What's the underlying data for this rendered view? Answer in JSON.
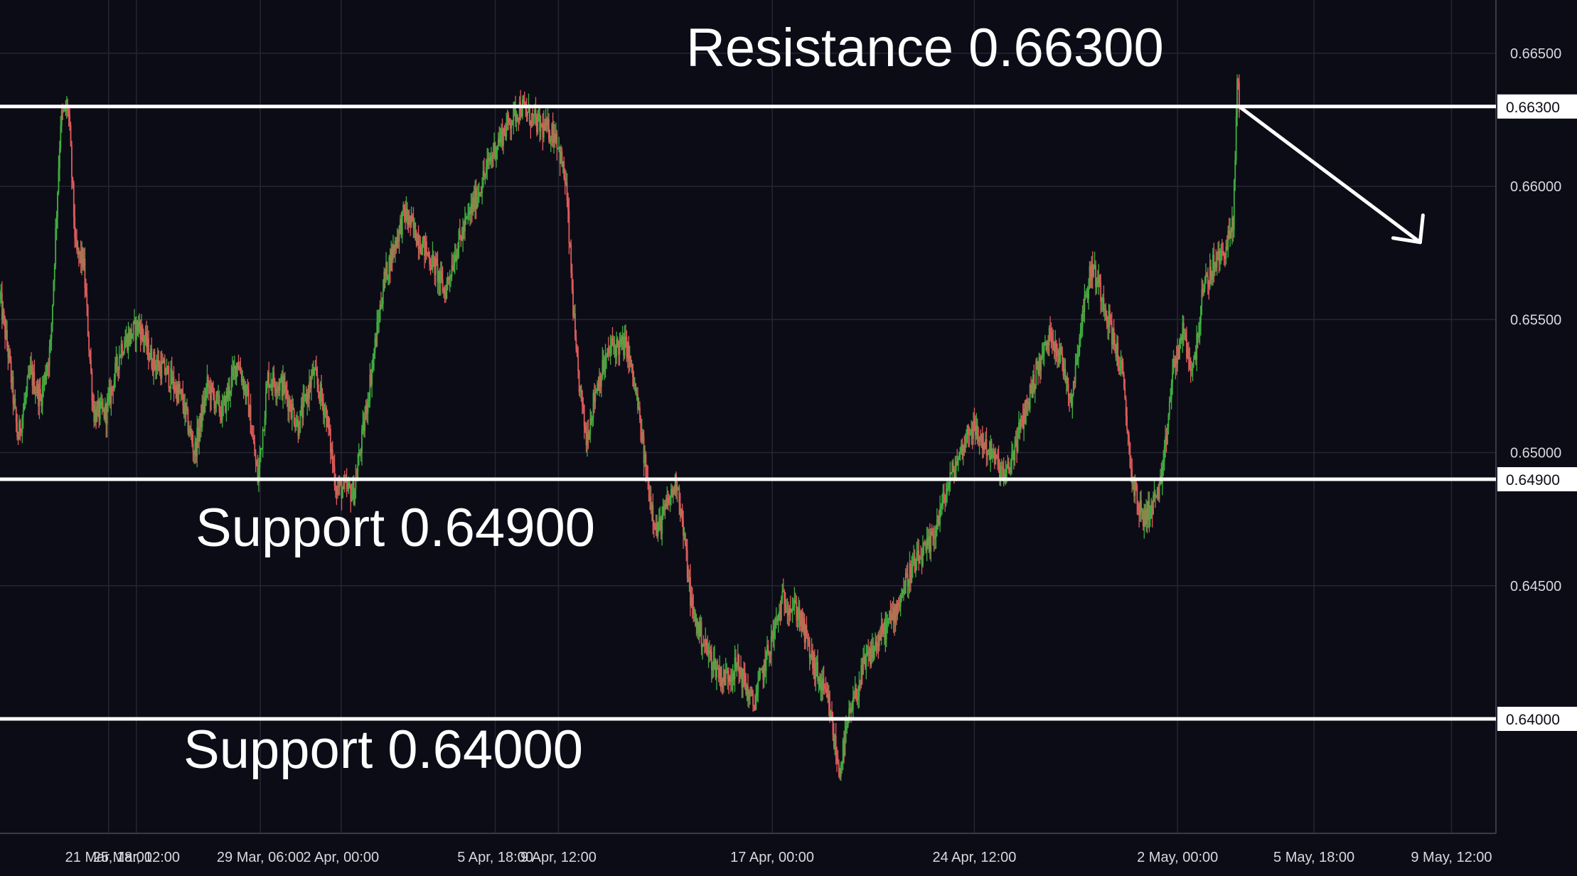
{
  "chart_data": {
    "type": "candlestick",
    "instrument_hint": "",
    "x_tick_labels": [
      "21 Mar, 18:00",
      "25 Mar, 12:00",
      "29 Mar, 06:00",
      "2 Apr, 00:00",
      "5 Apr, 18:00",
      "9 Apr, 12:00",
      "17 Apr, 00:00",
      "24 Apr, 12:00",
      "2 May, 00:00",
      "5 May, 18:00",
      "9 May, 12:00"
    ],
    "y_tick_labels": [
      "0.66500",
      "0.66000",
      "0.65500",
      "0.65000",
      "0.64500"
    ],
    "ylim": [
      0.6357,
      0.667
    ],
    "grid": true,
    "colors": {
      "background": "#0c0c17",
      "grid": "#262633",
      "up": "#3fae3f",
      "down": "#e05b5b",
      "level_line": "#ffffff"
    },
    "price_path_keypoints": [
      [
        0,
        0.6558
      ],
      [
        18,
        0.6535
      ],
      [
        35,
        0.6505
      ],
      [
        60,
        0.653
      ],
      [
        80,
        0.652
      ],
      [
        100,
        0.654
      ],
      [
        120,
        0.6625
      ],
      [
        135,
        0.663
      ],
      [
        150,
        0.6575
      ],
      [
        165,
        0.6572
      ],
      [
        185,
        0.6515
      ],
      [
        210,
        0.6515
      ],
      [
        240,
        0.654
      ],
      [
        275,
        0.6548
      ],
      [
        300,
        0.6535
      ],
      [
        330,
        0.653
      ],
      [
        360,
        0.652
      ],
      [
        385,
        0.65
      ],
      [
        410,
        0.6525
      ],
      [
        440,
        0.6515
      ],
      [
        470,
        0.6535
      ],
      [
        490,
        0.652
      ],
      [
        510,
        0.649
      ],
      [
        530,
        0.6528
      ],
      [
        560,
        0.6525
      ],
      [
        590,
        0.651
      ],
      [
        620,
        0.653
      ],
      [
        645,
        0.6515
      ],
      [
        665,
        0.6487
      ],
      [
        700,
        0.6485
      ],
      [
        720,
        0.651
      ],
      [
        760,
        0.6565
      ],
      [
        800,
        0.659
      ],
      [
        830,
        0.658
      ],
      [
        860,
        0.657
      ],
      [
        880,
        0.656
      ],
      [
        900,
        0.6575
      ],
      [
        920,
        0.6585
      ],
      [
        950,
        0.66
      ],
      [
        980,
        0.6615
      ],
      [
        1010,
        0.6625
      ],
      [
        1030,
        0.663
      ],
      [
        1070,
        0.6622
      ],
      [
        1100,
        0.662
      ],
      [
        1120,
        0.66
      ],
      [
        1140,
        0.6535
      ],
      [
        1160,
        0.6505
      ],
      [
        1180,
        0.6525
      ],
      [
        1210,
        0.654
      ],
      [
        1240,
        0.654
      ],
      [
        1260,
        0.652
      ],
      [
        1280,
        0.649
      ],
      [
        1300,
        0.647
      ],
      [
        1320,
        0.648
      ],
      [
        1340,
        0.649
      ],
      [
        1370,
        0.644
      ],
      [
        1400,
        0.6425
      ],
      [
        1430,
        0.6415
      ],
      [
        1460,
        0.642
      ],
      [
        1490,
        0.6405
      ],
      [
        1520,
        0.6425
      ],
      [
        1550,
        0.6445
      ],
      [
        1580,
        0.644
      ],
      [
        1610,
        0.642
      ],
      [
        1640,
        0.6405
      ],
      [
        1660,
        0.638
      ],
      [
        1680,
        0.64
      ],
      [
        1710,
        0.642
      ],
      [
        1740,
        0.643
      ],
      [
        1770,
        0.644
      ],
      [
        1800,
        0.6455
      ],
      [
        1840,
        0.6465
      ],
      [
        1880,
        0.649
      ],
      [
        1920,
        0.651
      ],
      [
        1960,
        0.65
      ],
      [
        1990,
        0.649
      ],
      [
        2020,
        0.651
      ],
      [
        2050,
        0.653
      ],
      [
        2080,
        0.6545
      ],
      [
        2100,
        0.6535
      ],
      [
        2120,
        0.652
      ],
      [
        2140,
        0.655
      ],
      [
        2160,
        0.657
      ],
      [
        2180,
        0.656
      ],
      [
        2200,
        0.6545
      ],
      [
        2220,
        0.653
      ],
      [
        2240,
        0.649
      ],
      [
        2260,
        0.6475
      ],
      [
        2280,
        0.648
      ],
      [
        2300,
        0.649
      ],
      [
        2320,
        0.653
      ],
      [
        2340,
        0.6545
      ],
      [
        2360,
        0.653
      ],
      [
        2380,
        0.656
      ],
      [
        2400,
        0.657
      ],
      [
        2420,
        0.6575
      ],
      [
        2440,
        0.6585
      ],
      [
        2448,
        0.664
      ],
      [
        2452,
        0.663
      ]
    ],
    "levels": [
      {
        "name": "resistance",
        "value": 0.663,
        "axis_label": "0.66300",
        "annotation": "Resistance 0.66300"
      },
      {
        "name": "support-1",
        "value": 0.649,
        "axis_label": "0.64900",
        "annotation": "Support 0.64900"
      },
      {
        "name": "support-2",
        "value": 0.64,
        "axis_label": "0.64000",
        "annotation": "Support 0.64000"
      }
    ],
    "projection_arrow": {
      "from": [
        2452,
        0.663
      ],
      "to": [
        2810,
        0.6579
      ]
    }
  }
}
